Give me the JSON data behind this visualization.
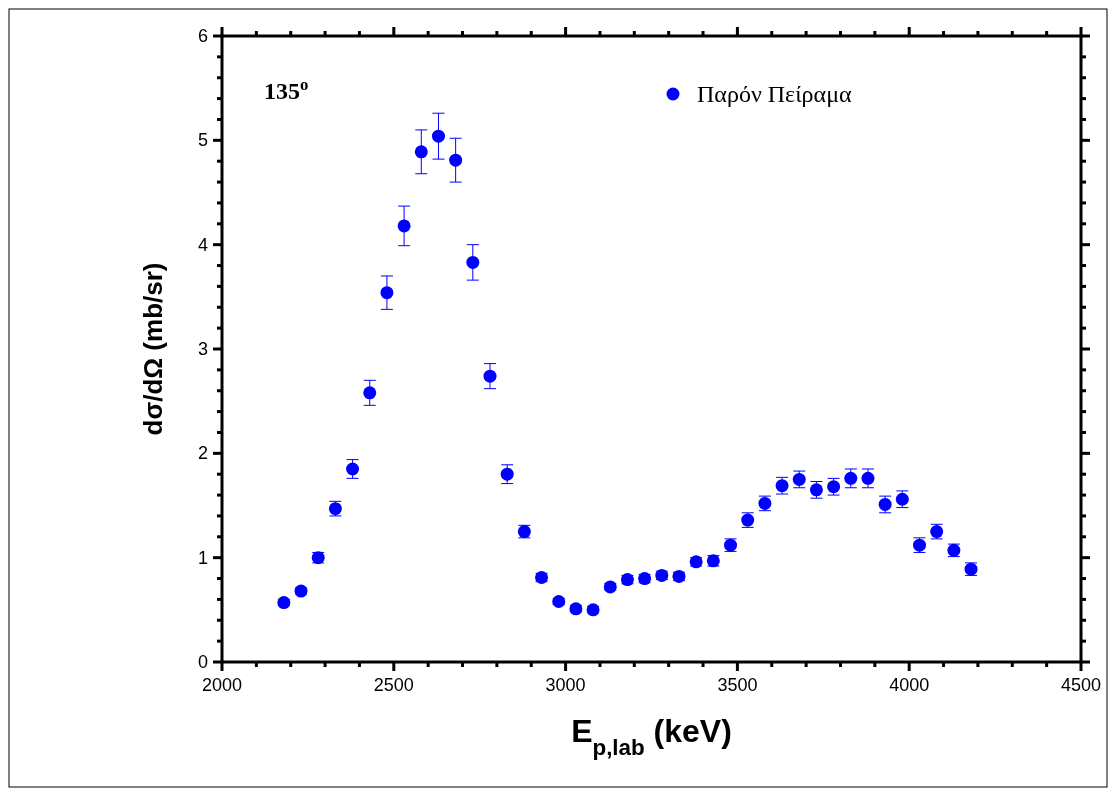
{
  "chart_data": {
    "type": "scatter",
    "xlabel": "E$_{p,lab}$ (keV)",
    "ylabel": "dσ/dΩ (mb/sr)",
    "annotations": [
      "135$^{o}$"
    ],
    "series": [
      {
        "name": "Παρόν Πείραμα",
        "color": "#0000ff",
        "x": [
          2180,
          2230,
          2280,
          2330,
          2380,
          2430,
          2480,
          2530,
          2580,
          2630,
          2680,
          2730,
          2780,
          2830,
          2880,
          2930,
          2980,
          3030,
          3080,
          3130,
          3180,
          3230,
          3280,
          3330,
          3380,
          3430,
          3480,
          3530,
          3580,
          3630,
          3680,
          3730,
          3780,
          3830,
          3880,
          3930,
          3980,
          4030,
          4080,
          4130,
          4180
        ],
        "values": [
          0.57,
          0.68,
          1.0,
          1.47,
          1.85,
          2.58,
          3.54,
          4.18,
          4.89,
          5.04,
          4.81,
          3.83,
          2.74,
          1.8,
          1.25,
          0.81,
          0.58,
          0.51,
          0.5,
          0.72,
          0.79,
          0.8,
          0.83,
          0.82,
          0.96,
          0.97,
          1.12,
          1.36,
          1.52,
          1.69,
          1.75,
          1.65,
          1.68,
          1.76,
          1.76,
          1.51,
          1.56,
          1.12,
          1.25,
          1.07,
          0.89
        ],
        "errors": [
          0.03,
          0.03,
          0.05,
          0.07,
          0.09,
          0.12,
          0.16,
          0.19,
          0.21,
          0.22,
          0.21,
          0.17,
          0.12,
          0.09,
          0.06,
          0.04,
          0.03,
          0.03,
          0.03,
          0.03,
          0.04,
          0.04,
          0.04,
          0.04,
          0.04,
          0.05,
          0.06,
          0.07,
          0.07,
          0.08,
          0.08,
          0.08,
          0.08,
          0.09,
          0.09,
          0.08,
          0.08,
          0.07,
          0.07,
          0.06,
          0.06
        ]
      }
    ],
    "xlim": [
      2000,
      4500
    ],
    "xticks": [
      2000,
      {
        "value": 2100,
        "label": null
      },
      {
        "value": 2200,
        "label": null
      },
      {
        "value": 2300,
        "label": null
      },
      {
        "value": 2400,
        "label": null
      },
      2500,
      {
        "value": 2600,
        "label": null
      },
      {
        "value": 2700,
        "label": null
      },
      {
        "value": 2800,
        "label": null
      },
      {
        "value": 2900,
        "label": null
      },
      3000,
      {
        "value": 3100,
        "label": null
      },
      {
        "value": 3200,
        "label": null
      },
      {
        "value": 3300,
        "label": null
      },
      {
        "value": 3400,
        "label": null
      },
      3500,
      {
        "value": 3600,
        "label": null
      },
      {
        "value": 3700,
        "label": null
      },
      {
        "value": 3800,
        "label": null
      },
      {
        "value": 3900,
        "label": null
      },
      4000,
      {
        "value": 4100,
        "label": null
      },
      {
        "value": 4200,
        "label": null
      },
      {
        "value": 4300,
        "label": null
      },
      {
        "value": 4400,
        "label": null
      },
      4500
    ],
    "ylim": [
      0,
      6
    ],
    "yticks": [
      0,
      {
        "value": 0.2,
        "label": null
      },
      {
        "value": 0.4,
        "label": null
      },
      {
        "value": 0.6,
        "label": null
      },
      {
        "value": 0.8,
        "label": null
      },
      1,
      {
        "value": 1.2,
        "label": null
      },
      {
        "value": 1.4,
        "label": null
      },
      {
        "value": 1.6,
        "label": null
      },
      {
        "value": 1.8,
        "label": null
      },
      2,
      {
        "value": 2.2,
        "label": null
      },
      {
        "value": 2.4,
        "label": null
      },
      {
        "value": 2.6,
        "label": null
      },
      {
        "value": 2.8,
        "label": null
      },
      3,
      {
        "value": 3.2,
        "label": null
      },
      {
        "value": 3.4,
        "label": null
      },
      {
        "value": 3.6,
        "label": null
      },
      {
        "value": 3.8,
        "label": null
      },
      4,
      {
        "value": 4.2,
        "label": null
      },
      {
        "value": 4.4,
        "label": null
      },
      {
        "value": 4.6,
        "label": null
      },
      {
        "value": 4.8,
        "label": null
      },
      5,
      {
        "value": 5.2,
        "label": null
      },
      {
        "value": 5.4,
        "label": null
      },
      {
        "value": 5.6,
        "label": null
      },
      {
        "value": 5.8,
        "label": null
      },
      6
    ],
    "legend": "top right",
    "marker": "circle",
    "grid": false
  }
}
